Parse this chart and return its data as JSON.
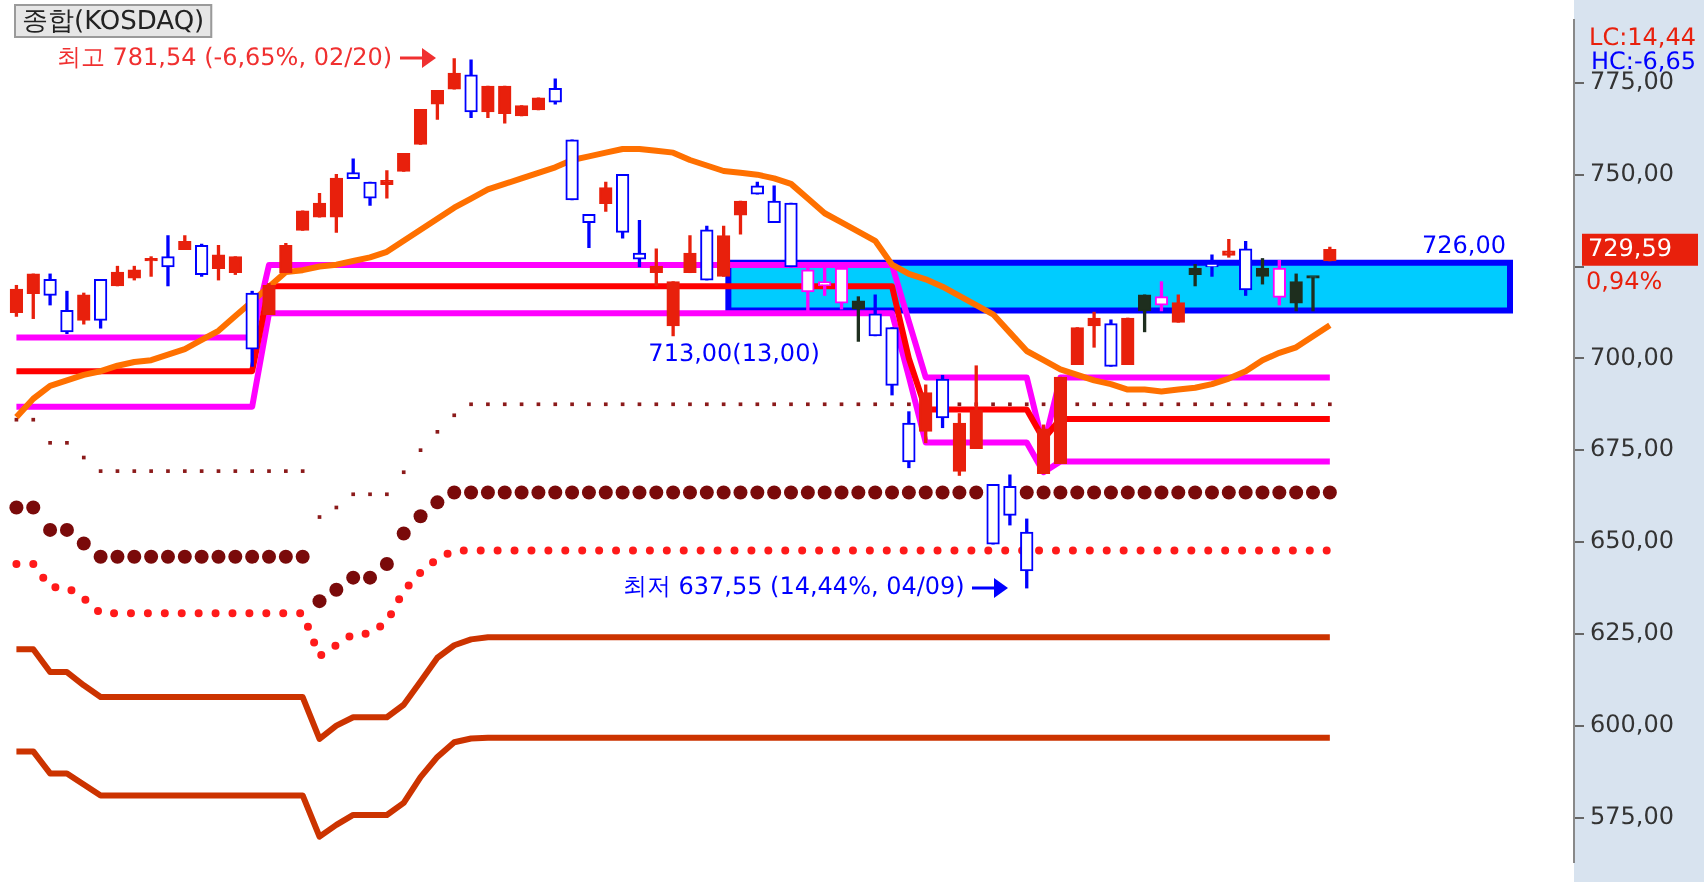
{
  "chart_data": {
    "type": "candlestick",
    "title": "종합(KOSDAQ)",
    "categories": [
      null,
      null,
      null,
      null,
      null,
      null,
      null,
      null,
      null,
      null,
      null,
      null,
      null,
      null,
      null,
      null,
      null,
      null,
      null,
      null,
      null,
      null,
      null,
      null,
      null,
      null,
      null,
      null,
      null,
      null,
      null,
      null,
      null,
      null,
      null,
      null,
      null,
      null,
      null,
      null,
      null,
      null,
      null,
      null,
      null,
      null,
      null,
      null,
      null,
      null,
      null,
      null,
      null,
      null,
      null,
      null,
      null,
      null,
      null,
      null,
      null,
      null,
      null,
      null,
      null,
      null,
      null,
      null,
      null,
      null,
      null,
      null,
      null,
      null,
      null,
      null,
      null,
      null,
      null,
      null,
      null,
      null,
      null,
      null,
      null,
      null,
      null,
      null,
      null,
      null,
      null,
      null,
      null
    ],
    "ohlc": [
      [
        712.5,
        719.8,
        711.5,
        718.8
      ],
      [
        717.7,
        722.9,
        710.9,
        722.9
      ],
      [
        721.4,
        722.9,
        714.6,
        717.2
      ],
      [
        713,
        718.2,
        706.8,
        707.3
      ],
      [
        710.4,
        717.7,
        709.4,
        717.2
      ],
      [
        721.4,
        721.4,
        708.3,
        710.4
      ],
      [
        719.8,
        725,
        719.8,
        723.4
      ],
      [
        721.9,
        725,
        721.4,
        724
      ],
      [
        726.6,
        727.6,
        722.4,
        727.1
      ],
      [
        727.6,
        733.3,
        719.8,
        725
      ],
      [
        729.7,
        733.3,
        729.7,
        731.8
      ],
      [
        730.7,
        731,
        722.4,
        722.9
      ],
      [
        724.5,
        730.7,
        721.4,
        728.1
      ],
      [
        723.4,
        727.6,
        722.9,
        727.6
      ],
      [
        717.7,
        718.2,
        697.9,
        702.6
      ],
      [
        712,
        720.3,
        712,
        719.8
      ],
      [
        723.4,
        731.2,
        723.4,
        730.7
      ],
      [
        734.9,
        740.1,
        734.9,
        740.1
      ],
      [
        738.5,
        744.8,
        738.5,
        742.2
      ],
      [
        738.5,
        750,
        734.4,
        749
      ],
      [
        750.5,
        754.2,
        749,
        749
      ],
      [
        747.9,
        747.9,
        741.7,
        743.7
      ],
      [
        747.4,
        751,
        743.7,
        748.4
      ],
      [
        751,
        755.7,
        751,
        755.7
      ],
      [
        758.3,
        767.7,
        758.3,
        767.7
      ],
      [
        769.3,
        772.9,
        765.1,
        772.9
      ],
      [
        773.4,
        781.54,
        773.4,
        777.6
      ],
      [
        777.1,
        781.2,
        765.6,
        767.2
      ],
      [
        767.2,
        774,
        765.6,
        774
      ],
      [
        766.7,
        774,
        764.1,
        774
      ],
      [
        766.1,
        768.7,
        766.1,
        768.7
      ],
      [
        767.7,
        770.8,
        767.7,
        770.8
      ],
      [
        773.4,
        776,
        769.3,
        769.8
      ],
      [
        759.4,
        759.4,
        743.2,
        743.2
      ],
      [
        739.1,
        739.1,
        730.2,
        737
      ],
      [
        742.2,
        747.9,
        740.1,
        746.4
      ],
      [
        750,
        750,
        732.8,
        734.4
      ],
      [
        728.6,
        737.5,
        725,
        727.1
      ],
      [
        723.4,
        729.7,
        719.8,
        725
      ],
      [
        708.9,
        720.8,
        706.2,
        720.8
      ],
      [
        723.4,
        733.3,
        723.4,
        728.6
      ],
      [
        734.9,
        735.9,
        721.4,
        721.4
      ],
      [
        722.4,
        735.9,
        722.4,
        733.3
      ],
      [
        739.1,
        742.7,
        733.9,
        742.7
      ],
      [
        746.9,
        747.9,
        744.8,
        744.8
      ],
      [
        742.7,
        746.9,
        737,
        737
      ],
      [
        742.2,
        742.2,
        725,
        725
      ],
      [
        724,
        725,
        713,
        718.2
      ],
      [
        720.8,
        725.5,
        717.2,
        719.8
      ],
      [
        724.5,
        724.5,
        713.5,
        715.1
      ],
      [
        713.5,
        716.7,
        704.7,
        715.6
      ],
      [
        712,
        717.2,
        706.2,
        706.2
      ],
      [
        708.3,
        708.3,
        690.1,
        692.7
      ],
      [
        682.3,
        685.4,
        670.3,
        671.9
      ],
      [
        680.2,
        692.7,
        677.1,
        690.6
      ],
      [
        694.3,
        695.3,
        681.2,
        683.9
      ],
      [
        669.3,
        684.9,
        668.2,
        682.3
      ],
      [
        675.5,
        697.9,
        675.5,
        685.9
      ],
      [
        665.6,
        665.6,
        649.5,
        649.5
      ],
      [
        665.1,
        668.2,
        654.7,
        657.3
      ],
      [
        652.6,
        656.2,
        637.55,
        642.2
      ],
      [
        668.7,
        681.8,
        668.7,
        680.7
      ],
      [
        671.4,
        694.8,
        671.4,
        694.8
      ],
      [
        698.4,
        708.3,
        698.4,
        708.3
      ],
      [
        708.9,
        712.5,
        703.1,
        710.9
      ],
      [
        709.4,
        710.4,
        697.9,
        697.9
      ],
      [
        698.4,
        710.9,
        698.4,
        710.9
      ],
      [
        713,
        717.2,
        707.3,
        717.2
      ],
      [
        716.7,
        720.8,
        713,
        714.6
      ],
      [
        709.9,
        717.2,
        709.9,
        715.1
      ],
      [
        722.9,
        725.5,
        719.8,
        724.5
      ],
      [
        725.5,
        728.1,
        722.4,
        725
      ],
      [
        728.1,
        732.3,
        727.6,
        729.2
      ],
      [
        729.7,
        731.8,
        717.2,
        718.7
      ],
      [
        722.4,
        727.1,
        720.3,
        724.5
      ],
      [
        724.5,
        726.6,
        714.6,
        716.7
      ],
      [
        715.1,
        722.9,
        713,
        720.8
      ],
      [
        721.9,
        721.9,
        713,
        721.9
      ],
      [
        726.6,
        730.2,
        726.6,
        729.59
      ],
      null,
      null,
      null,
      null,
      null,
      null,
      null,
      null,
      null,
      null,
      null,
      null,
      null,
      null
    ],
    "colors": [
      "#e8200c",
      "#e8200c",
      "#0000ff",
      "#0000ff",
      "#e8200c",
      "#0000ff",
      "#e8200c",
      "#e8200c",
      "#e8200c",
      "#0000ff",
      "#e8200c",
      "#0000ff",
      "#e8200c",
      "#e8200c",
      "#0000ff",
      "#e8200c",
      "#e8200c",
      "#e8200c",
      "#e8200c",
      "#e8200c",
      "#0000ff",
      "#0000ff",
      "#e8200c",
      "#e8200c",
      "#e8200c",
      "#e8200c",
      "#e8200c",
      "#0000ff",
      "#e8200c",
      "#e8200c",
      "#e8200c",
      "#e8200c",
      "#0000ff",
      "#0000ff",
      "#0000ff",
      "#e8200c",
      "#0000ff",
      "#0000ff",
      "#e8200c",
      "#e8200c",
      "#e8200c",
      "#0000ff",
      "#e8200c",
      "#e8200c",
      "#0000ff",
      "#0000ff",
      "#0000ff",
      "#ff00ff",
      "#ff00ff",
      "#ff00ff",
      "#1e2e1e",
      "#0000ff",
      "#0000ff",
      "#0000ff",
      "#e8200c",
      "#0000ff",
      "#e8200c",
      "#e8200c",
      "#0000ff",
      "#0000ff",
      "#0000ff",
      "#e8200c",
      "#e8200c",
      "#e8200c",
      "#e8200c",
      "#0000ff",
      "#e8200c",
      "#1e2e1e",
      "#ff00ff",
      "#e8200c",
      "#1e2e1e",
      "#0000ff",
      "#e8200c",
      "#0000ff",
      "#1e2e1e",
      "#ff00ff",
      "#1e2e1e",
      "#1e2e1e",
      "#e8200c",
      null,
      null,
      null,
      null,
      null,
      null,
      null,
      null,
      null,
      null,
      null,
      null,
      null,
      null
    ],
    "series": [
      {
        "type": "line",
        "color": "#ff7000",
        "values": [
          684,
          689,
          692.5,
          694,
          695.5,
          696.5,
          698,
          699,
          699.5,
          701,
          702.5,
          705,
          707.5,
          711.5,
          715.5,
          719.5,
          723.5,
          724,
          725,
          725.5,
          726.5,
          727.5,
          729,
          732,
          735,
          738,
          741,
          743.5,
          746,
          747.5,
          749,
          750.5,
          752,
          754,
          755,
          756,
          757,
          757,
          756.5,
          756,
          754,
          752.5,
          751,
          750.5,
          750,
          749,
          747.5,
          743.5,
          739.5,
          737,
          734.5,
          732,
          725.5,
          723,
          721.5,
          719.5,
          717,
          714.5,
          712,
          707,
          702,
          699.5,
          697,
          695.5,
          694,
          693,
          691.5,
          691.5,
          691,
          691.5,
          692,
          693,
          694.5,
          696.5,
          699.5,
          701.5,
          703,
          706,
          709,
          null,
          null,
          null,
          null,
          null,
          null,
          null,
          null,
          null,
          null,
          null,
          null,
          null,
          null
        ]
      },
      {
        "type": "line",
        "color": "#cc3300",
        "values": [
          620.8,
          620.8,
          614.6,
          614.6,
          611,
          607.8,
          607.8,
          607.8,
          607.8,
          607.8,
          607.8,
          607.8,
          607.8,
          607.8,
          607.8,
          607.8,
          607.8,
          607.8,
          596.4,
          600,
          602.3,
          602.3,
          602.3,
          605.7,
          612,
          618.5,
          621.9,
          623.5,
          624.1,
          624.1,
          624.1,
          624.1,
          624.1,
          624.1,
          624.1,
          624.1,
          624.1,
          624.1,
          624.1,
          624.1,
          624.1,
          624.1,
          624.1,
          624.1,
          624.1,
          624.1,
          624.1,
          624.1,
          624.1,
          624.1,
          624.1,
          624.1,
          624.1,
          624.1,
          624.1,
          624.1,
          624.1,
          624.1,
          624.1,
          624.1,
          624.1,
          624.1,
          624.1,
          624.1,
          624.1,
          624.1,
          624.1,
          624.1,
          624.1,
          624.1,
          624.1,
          624.1,
          624.1,
          624.1,
          624.1,
          624.1,
          624.1,
          624.1,
          624.1,
          null,
          null,
          null,
          null,
          null,
          null,
          null,
          null,
          null,
          null,
          null,
          null,
          null,
          null
        ]
      },
      {
        "type": "line",
        "color": "#cc3300",
        "values": [
          593,
          593,
          587,
          587,
          584,
          581,
          581,
          581,
          581,
          581,
          581,
          581,
          581,
          581,
          581,
          581,
          581,
          581,
          569.8,
          573,
          575.7,
          575.7,
          575.7,
          579,
          586,
          591.5,
          595.5,
          596.5,
          596.7,
          596.7,
          596.7,
          596.7,
          596.7,
          596.7,
          596.7,
          596.7,
          596.7,
          596.7,
          596.7,
          596.7,
          596.7,
          596.7,
          596.7,
          596.7,
          596.7,
          596.7,
          596.7,
          596.7,
          596.7,
          596.7,
          596.7,
          596.7,
          596.7,
          596.7,
          596.7,
          596.7,
          596.7,
          596.7,
          596.7,
          596.7,
          596.7,
          596.7,
          596.7,
          596.7,
          596.7,
          596.7,
          596.7,
          596.7,
          596.7,
          596.7,
          596.7,
          596.7,
          596.7,
          596.7,
          596.7,
          596.7,
          596.7,
          596.7,
          596.7,
          null,
          null,
          null,
          null,
          null,
          null,
          null,
          null,
          null,
          null,
          null,
          null,
          null,
          null
        ]
      },
      {
        "type": "scatter",
        "marker": "circle",
        "color": "#7a0a0a",
        "values": [
          659.4,
          659.4,
          653.3,
          653.3,
          649.6,
          646,
          646,
          646,
          646,
          646,
          646,
          646,
          646,
          646,
          646,
          646,
          646,
          646,
          633.9,
          637,
          640.3,
          640.3,
          644,
          652.3,
          657,
          660.8,
          663.5,
          663.5,
          663.5,
          663.5,
          663.5,
          663.5,
          663.5,
          663.5,
          663.5,
          663.5,
          663.5,
          663.5,
          663.5,
          663.5,
          663.5,
          663.5,
          663.5,
          663.5,
          663.5,
          663.5,
          663.5,
          663.5,
          663.5,
          663.5,
          663.5,
          663.5,
          663.5,
          663.5,
          663.5,
          663.5,
          663.5,
          663.5,
          null,
          null,
          663.5,
          663.5,
          663.5,
          663.5,
          663.5,
          663.5,
          663.5,
          663.5,
          663.5,
          663.5,
          663.5,
          663.5,
          663.5,
          663.5,
          663.5,
          663.5,
          663.5,
          663.5,
          663.5,
          null,
          null,
          null,
          null,
          null,
          null,
          null,
          null,
          null,
          null,
          null,
          null,
          null,
          null
        ]
      },
      {
        "type": "line",
        "line_style": "dotted",
        "color": "#ff1a1a",
        "values": [
          644,
          644,
          637.7,
          637.7,
          634.7,
          630.6,
          630.6,
          630.6,
          630.6,
          630.6,
          630.6,
          630.6,
          630.6,
          630.6,
          630.6,
          630.6,
          630.6,
          630.6,
          618.9,
          621.9,
          625,
          625,
          628.3,
          636.7,
          641.7,
          645.5,
          647.7,
          647.7,
          647.7,
          647.7,
          647.7,
          647.7,
          647.7,
          647.7,
          647.7,
          647.7,
          647.7,
          647.7,
          647.7,
          647.7,
          647.7,
          647.7,
          647.7,
          647.7,
          647.7,
          647.7,
          647.7,
          647.7,
          647.7,
          647.7,
          647.7,
          647.7,
          647.7,
          647.7,
          647.7,
          647.7,
          647.7,
          647.7,
          647.7,
          647.7,
          647.7,
          647.7,
          647.7,
          647.7,
          647.7,
          647.7,
          647.7,
          647.7,
          647.7,
          647.7,
          647.7,
          647.7,
          647.7,
          647.7,
          647.7,
          647.7,
          647.7,
          647.7,
          647.7,
          null,
          null,
          null,
          null,
          null,
          null,
          null,
          null,
          null,
          null,
          null,
          null,
          null,
          null
        ]
      },
      {
        "type": "scatter",
        "marker": "square",
        "color": "#8b1a1a",
        "values": [
          683.3,
          683.3,
          677,
          677,
          673,
          669.3,
          669.3,
          669.3,
          669.3,
          669.3,
          669.3,
          669.3,
          669.3,
          669.3,
          669.3,
          669.3,
          669.3,
          669.3,
          656.8,
          659.4,
          663,
          663,
          663,
          669,
          675,
          680,
          684.5,
          687.5,
          687.5,
          687.5,
          687.5,
          687.5,
          687.5,
          687.5,
          687.5,
          687.5,
          687.5,
          687.5,
          687.5,
          687.5,
          687.5,
          687.5,
          687.5,
          687.5,
          687.5,
          687.5,
          687.5,
          687.5,
          687.5,
          687.5,
          687.5,
          687.5,
          687.5,
          687.5,
          null,
          null,
          687.5,
          687.5,
          687.5,
          687.5,
          687.5,
          687.5,
          null,
          687.5,
          687.5,
          687.5,
          687.5,
          687.5,
          687.5,
          687.5,
          687.5,
          687.5,
          687.5,
          687.5,
          687.5,
          687.5,
          687.5,
          687.5,
          687.5,
          null,
          null,
          null,
          null,
          null,
          null,
          null,
          null,
          null,
          null,
          null,
          null,
          null,
          null
        ]
      },
      {
        "type": "line",
        "color": "#ff0000",
        "values": [
          696.5,
          696.5,
          696.5,
          696.5,
          696.5,
          696.5,
          696.5,
          696.5,
          696.5,
          696.5,
          696.5,
          696.5,
          696.5,
          696.5,
          696.5,
          719.6,
          719.6,
          719.6,
          719.6,
          719.6,
          719.6,
          719.6,
          719.6,
          719.6,
          719.6,
          719.6,
          719.6,
          719.6,
          719.6,
          719.6,
          719.6,
          719.6,
          719.6,
          719.6,
          719.6,
          719.6,
          719.6,
          719.6,
          719.6,
          719.6,
          719.6,
          719.6,
          719.6,
          719.6,
          719.6,
          719.6,
          719.6,
          719.6,
          719.6,
          719.6,
          719.6,
          719.6,
          719.6,
          700,
          686.1,
          686.1,
          686.1,
          686.1,
          686.1,
          686.1,
          686.1,
          678,
          683.5,
          683.5,
          683.5,
          683.5,
          683.5,
          683.5,
          683.5,
          683.5,
          683.5,
          683.5,
          683.5,
          683.5,
          683.5,
          683.5,
          683.5,
          683.5,
          683.5,
          null,
          null,
          null,
          null,
          null,
          null,
          null,
          null,
          null,
          null,
          null,
          null,
          null,
          null
        ]
      },
      {
        "type": "line",
        "color": "#ff00ff",
        "values": [
          705.7,
          705.7,
          705.7,
          705.7,
          705.7,
          705.7,
          705.7,
          705.7,
          705.7,
          705.7,
          705.7,
          705.7,
          705.7,
          705.7,
          705.7,
          725.4,
          725.4,
          725.4,
          725.4,
          725.4,
          725.4,
          725.4,
          725.4,
          725.4,
          725.4,
          725.4,
          725.4,
          725.4,
          725.4,
          725.4,
          725.4,
          725.4,
          725.4,
          725.4,
          725.4,
          725.4,
          725.4,
          725.4,
          725.4,
          725.4,
          725.4,
          725.4,
          725.4,
          725.4,
          725.4,
          725.4,
          725.4,
          725.4,
          725.4,
          725.4,
          725.4,
          725.4,
          725.4,
          710,
          694.8,
          694.8,
          694.8,
          694.8,
          694.8,
          694.8,
          694.8,
          676,
          694.8,
          694.8,
          694.8,
          694.8,
          694.8,
          694.8,
          694.8,
          694.8,
          694.8,
          694.8,
          694.8,
          694.8,
          694.8,
          694.8,
          694.8,
          694.8,
          694.8,
          null,
          null,
          null,
          null,
          null,
          null,
          null,
          null,
          null,
          null,
          null,
          null,
          null,
          null
        ]
      },
      {
        "type": "line",
        "color": "#ff00ff",
        "values": [
          686.8,
          686.8,
          686.8,
          686.8,
          686.8,
          686.8,
          686.8,
          686.8,
          686.8,
          686.8,
          686.8,
          686.8,
          686.8,
          686.8,
          686.8,
          712.3,
          712.3,
          712.3,
          712.3,
          712.3,
          712.3,
          712.3,
          712.3,
          712.3,
          712.3,
          712.3,
          712.3,
          712.3,
          712.3,
          712.3,
          712.3,
          712.3,
          712.3,
          712.3,
          712.3,
          712.3,
          712.3,
          712.3,
          712.3,
          712.3,
          712.3,
          712.3,
          712.3,
          712.3,
          712.3,
          712.3,
          712.3,
          712.3,
          712.3,
          712.3,
          712.3,
          712.3,
          712.3,
          695,
          677.1,
          677.1,
          677.1,
          677.1,
          677.1,
          677.1,
          677.1,
          669,
          671.9,
          671.9,
          671.9,
          671.9,
          671.9,
          671.9,
          671.9,
          671.9,
          671.9,
          671.9,
          671.9,
          671.9,
          671.9,
          671.9,
          671.9,
          671.9,
          671.9,
          null,
          null,
          null,
          null,
          null,
          null,
          null,
          null,
          null,
          null,
          null,
          null,
          null,
          null
        ]
      }
    ],
    "bands": [
      {
        "axis": "y",
        "from": 713,
        "to": 726,
        "label": "726,00",
        "color": "#00ccff"
      }
    ],
    "annotations": [
      "최고 781,54 (-6,65%, 02/20)",
      "최저 637,55 (14,44%, 04/09)",
      "729,59",
      "713,00(13,00)",
      "0,94%",
      "LC:14,44",
      "HC:-6,65"
    ],
    "ylim": [
      563,
      792
    ],
    "yticks": [
      {
        "value": 575,
        "label": "575,00"
      },
      {
        "value": 600,
        "label": "600,00"
      },
      {
        "value": 625,
        "label": "625,00"
      },
      {
        "value": 650,
        "label": "650,00"
      },
      {
        "value": 675,
        "label": "675,00"
      },
      {
        "value": 700,
        "label": "700,00"
      },
      {
        "value": 725,
        "label": null
      },
      {
        "value": 750,
        "label": "750,00"
      },
      {
        "value": 775,
        "label": "775,00"
      }
    ],
    "tick_labels": "y",
    "legend": false,
    "grid": false
  }
}
